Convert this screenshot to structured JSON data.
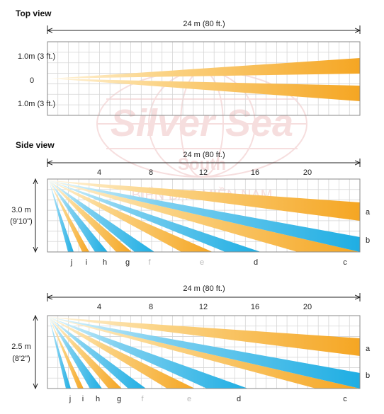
{
  "watermark": {
    "line1": "Silver Sea",
    "line2": "South",
    "line3": "BIỂN BẠC MIỀN NAM"
  },
  "colors": {
    "orange": "#f5a623",
    "orange_light": "#fde7b8",
    "blue": "#1faee3",
    "blue_light": "#c7ecf9",
    "watermark": "#e8a3a3"
  },
  "top_view": {
    "title": "Top view",
    "range_label": "24 m (80 ft.)",
    "row_labels": [
      "1.0m (3 ft.)",
      "0",
      "1.0m (3 ft.)"
    ]
  },
  "side_views": [
    {
      "range_label": "24 m (80 ft.)",
      "ticks": [
        "4",
        "8",
        "12",
        "16",
        "20"
      ],
      "height_label": "3.0 m",
      "height_label_ft": "(9'10\")",
      "zone_letters": [
        "j",
        "i",
        "h",
        "g",
        "f",
        "e",
        "d",
        "c"
      ],
      "right_letters": [
        "a",
        "b"
      ]
    },
    {
      "range_label": "24 m (80 ft.)",
      "ticks": [
        "4",
        "8",
        "12",
        "16",
        "20"
      ],
      "height_label": "2.5 m",
      "height_label_ft": "(8'2\")",
      "zone_letters": [
        "j",
        "i",
        "h",
        "g",
        "f",
        "e",
        "d",
        "c"
      ],
      "right_letters": [
        "a",
        "b"
      ]
    }
  ],
  "side_view_title": "Side view",
  "zones": [
    {
      "letter": "j",
      "color": "blue",
      "greyed": false
    },
    {
      "letter": "i",
      "color": "orange",
      "greyed": false
    },
    {
      "letter": "h",
      "color": "blue",
      "greyed": false
    },
    {
      "letter": "g",
      "color": "orange",
      "greyed": false
    },
    {
      "letter": "f",
      "color": "blue",
      "greyed": true
    },
    {
      "letter": "e",
      "color": "orange",
      "greyed": true
    },
    {
      "letter": "d",
      "color": "blue",
      "greyed": false
    },
    {
      "letter": "c",
      "color": "orange",
      "greyed": false
    },
    {
      "letter": "b",
      "color": "blue",
      "greyed": false
    },
    {
      "letter": "a",
      "color": "orange",
      "greyed": false
    }
  ]
}
